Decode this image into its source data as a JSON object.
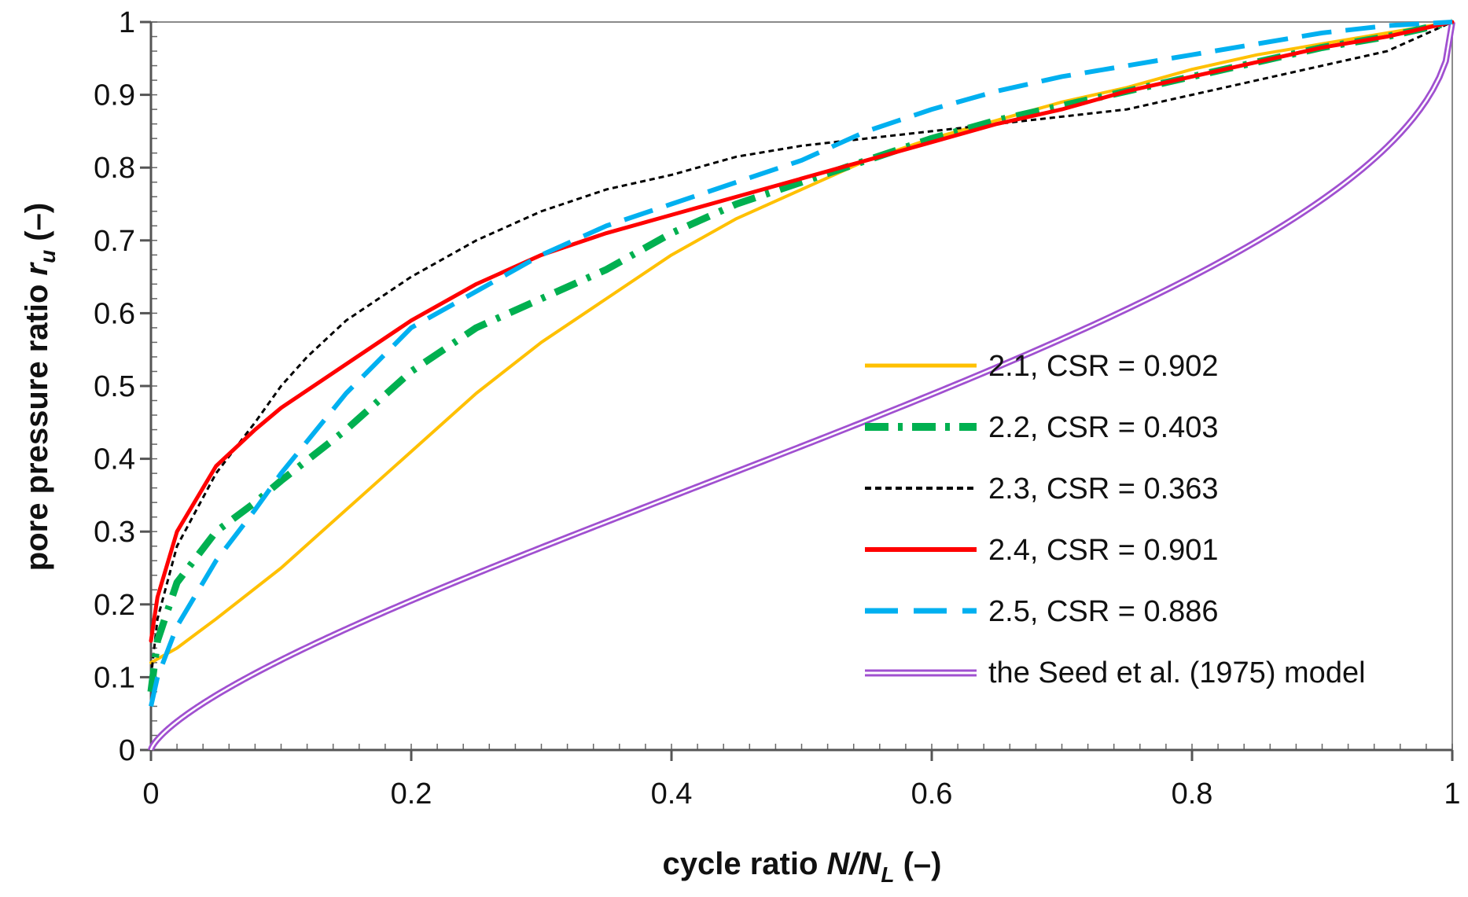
{
  "chart_data": {
    "type": "line",
    "title": "",
    "xlabel": {
      "main": "cycle ratio ",
      "italic": "N/N",
      "sub": "L",
      "unit": " (–)"
    },
    "ylabel": {
      "main": "pore pressure ratio ",
      "italic": "r",
      "sub": "u",
      "unit": " (–)"
    },
    "xlim": [
      0,
      1
    ],
    "ylim": [
      0,
      1
    ],
    "x_ticks": [
      0,
      0.2,
      0.4,
      0.6,
      0.8,
      1
    ],
    "x_tick_labels": [
      "0",
      "0.2",
      "0.4",
      "0.6",
      "0.8",
      "1"
    ],
    "y_ticks": [
      0,
      0.1,
      0.2,
      0.3,
      0.4,
      0.5,
      0.6,
      0.7,
      0.8,
      0.9,
      1
    ],
    "y_tick_labels": [
      "0",
      "0.1",
      "0.2",
      "0.3",
      "0.4",
      "0.5",
      "0.6",
      "0.7",
      "0.8",
      "0.9",
      "1"
    ],
    "grid": false,
    "legend_position": "lower-right",
    "series": [
      {
        "name": "2.1, CSR = 0.902",
        "color": "#FFC000",
        "style": "solid",
        "x": [
          0,
          0.02,
          0.05,
          0.1,
          0.15,
          0.2,
          0.25,
          0.3,
          0.35,
          0.4,
          0.45,
          0.5,
          0.55,
          0.6,
          0.65,
          0.7,
          0.75,
          0.8,
          0.85,
          0.9,
          0.95,
          1
        ],
        "y": [
          0.12,
          0.14,
          0.18,
          0.25,
          0.33,
          0.41,
          0.49,
          0.56,
          0.62,
          0.68,
          0.73,
          0.77,
          0.81,
          0.84,
          0.865,
          0.89,
          0.91,
          0.935,
          0.955,
          0.97,
          0.985,
          1.0
        ]
      },
      {
        "name": "2.2, CSR = 0.403",
        "color": "#00B050",
        "style": "dashdot",
        "x": [
          0,
          0.005,
          0.02,
          0.05,
          0.08,
          0.1,
          0.15,
          0.2,
          0.25,
          0.3,
          0.35,
          0.4,
          0.45,
          0.5,
          0.55,
          0.6,
          0.65,
          0.7,
          0.75,
          0.8,
          0.85,
          0.9,
          0.95,
          1
        ],
        "y": [
          0.08,
          0.15,
          0.23,
          0.3,
          0.34,
          0.37,
          0.44,
          0.52,
          0.58,
          0.62,
          0.66,
          0.71,
          0.75,
          0.78,
          0.81,
          0.84,
          0.865,
          0.885,
          0.905,
          0.925,
          0.945,
          0.965,
          0.98,
          1.0
        ]
      },
      {
        "name": "2.3, CSR = 0.363",
        "color": "#000000",
        "style": "dotted",
        "x": [
          0,
          0.005,
          0.02,
          0.05,
          0.08,
          0.1,
          0.12,
          0.15,
          0.2,
          0.25,
          0.3,
          0.35,
          0.4,
          0.45,
          0.5,
          0.55,
          0.6,
          0.65,
          0.7,
          0.75,
          0.8,
          0.85,
          0.9,
          0.95,
          1
        ],
        "y": [
          0.1,
          0.18,
          0.28,
          0.38,
          0.45,
          0.5,
          0.54,
          0.59,
          0.65,
          0.7,
          0.74,
          0.77,
          0.79,
          0.815,
          0.83,
          0.84,
          0.85,
          0.86,
          0.87,
          0.88,
          0.9,
          0.92,
          0.94,
          0.96,
          1.0
        ]
      },
      {
        "name": "2.4, CSR = 0.901",
        "color": "#FF0000",
        "style": "solid",
        "x": [
          0,
          0.005,
          0.02,
          0.05,
          0.08,
          0.1,
          0.15,
          0.2,
          0.25,
          0.3,
          0.35,
          0.4,
          0.45,
          0.5,
          0.55,
          0.6,
          0.65,
          0.7,
          0.75,
          0.8,
          0.85,
          0.9,
          0.95,
          1
        ],
        "y": [
          0.15,
          0.21,
          0.3,
          0.39,
          0.44,
          0.47,
          0.53,
          0.59,
          0.64,
          0.68,
          0.71,
          0.735,
          0.76,
          0.785,
          0.81,
          0.835,
          0.86,
          0.88,
          0.905,
          0.925,
          0.945,
          0.965,
          0.98,
          1.0
        ]
      },
      {
        "name": "2.5, CSR = 0.886",
        "color": "#00B0F0",
        "style": "dashed",
        "x": [
          0,
          0.005,
          0.02,
          0.05,
          0.08,
          0.1,
          0.15,
          0.2,
          0.25,
          0.3,
          0.35,
          0.4,
          0.45,
          0.5,
          0.55,
          0.6,
          0.65,
          0.7,
          0.75,
          0.8,
          0.85,
          0.9,
          0.95,
          1
        ],
        "y": [
          0.06,
          0.1,
          0.17,
          0.26,
          0.33,
          0.38,
          0.49,
          0.58,
          0.63,
          0.68,
          0.72,
          0.75,
          0.78,
          0.81,
          0.85,
          0.88,
          0.905,
          0.925,
          0.94,
          0.955,
          0.97,
          0.985,
          0.995,
          1.0
        ]
      },
      {
        "name": "the Seed et al. (1975) model",
        "color": "#A050D0",
        "style": "double",
        "formula": "r_u = 0.5 + (1/pi) * asin(2*x^(1/0.7) - 1)"
      }
    ]
  }
}
